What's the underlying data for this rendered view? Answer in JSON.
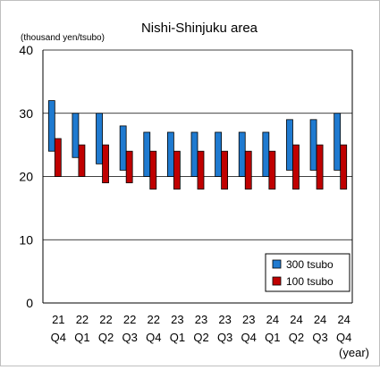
{
  "chart_data": {
    "type": "floating-bar",
    "title": "Nishi-Shinjuku area",
    "ylabel": "(thousand yen/tsubo)",
    "xunit": "(year)",
    "ylim": [
      0,
      40
    ],
    "yticks": [
      0,
      10,
      20,
      30,
      40
    ],
    "gridlines": [
      10,
      20,
      30,
      40
    ],
    "categories": [
      {
        "year": "21",
        "quarter": "Q4"
      },
      {
        "year": "22",
        "quarter": "Q1"
      },
      {
        "year": "22",
        "quarter": "Q2"
      },
      {
        "year": "22",
        "quarter": "Q3"
      },
      {
        "year": "22",
        "quarter": "Q4"
      },
      {
        "year": "23",
        "quarter": "Q1"
      },
      {
        "year": "23",
        "quarter": "Q2"
      },
      {
        "year": "23",
        "quarter": "Q3"
      },
      {
        "year": "23",
        "quarter": "Q4"
      },
      {
        "year": "24",
        "quarter": "Q1"
      },
      {
        "year": "24",
        "quarter": "Q2"
      },
      {
        "year": "24",
        "quarter": "Q3"
      },
      {
        "year": "24",
        "quarter": "Q4"
      }
    ],
    "series": [
      {
        "name": "300 tsubo",
        "color": "#1f7ad0",
        "low": [
          24,
          23,
          22,
          21,
          20,
          20,
          20,
          20,
          20,
          20,
          21,
          21,
          21
        ],
        "high": [
          32,
          30,
          30,
          28,
          27,
          27,
          27,
          27,
          27,
          27,
          29,
          29,
          30
        ]
      },
      {
        "name": "100 tsubo",
        "color": "#c00000",
        "low": [
          20,
          20,
          19,
          19,
          18,
          18,
          18,
          18,
          18,
          18,
          18,
          18,
          18
        ],
        "high": [
          26,
          25,
          25,
          24,
          24,
          24,
          24,
          24,
          24,
          24,
          25,
          25,
          25
        ]
      }
    ],
    "legend": "bottom-right"
  }
}
